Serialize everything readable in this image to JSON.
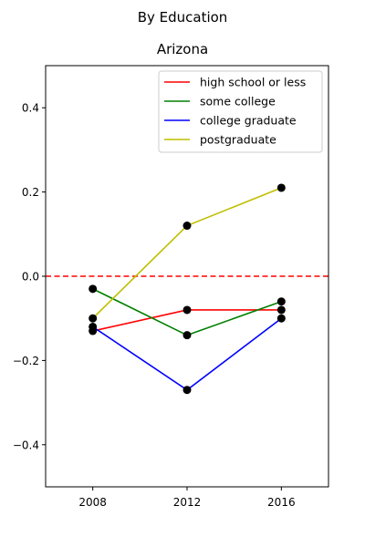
{
  "chart_data": {
    "type": "line",
    "suptitle": "By Education",
    "title": "Arizona",
    "xlabel": "",
    "ylabel": "",
    "x": [
      2008,
      2012,
      2016
    ],
    "xticks": [
      "2008",
      "2012",
      "2016"
    ],
    "xlim": [
      2006,
      2018
    ],
    "ylim": [
      -0.5,
      0.5
    ],
    "yticks": [
      "−0.4",
      "−0.2",
      "0.0",
      "0.2",
      "0.4"
    ],
    "ytick_values": [
      -0.4,
      -0.2,
      0.0,
      0.2,
      0.4
    ],
    "reference_line": {
      "y": 0.0,
      "color": "#ff0000",
      "style": "dashed"
    },
    "marker_color": "#000000",
    "legend_position": "upper-right",
    "grid": false,
    "series": [
      {
        "name": "high school or less",
        "color": "#ff0000",
        "values": [
          -0.13,
          -0.08,
          -0.08
        ]
      },
      {
        "name": "some college",
        "color": "#008000",
        "values": [
          -0.03,
          -0.14,
          -0.06
        ]
      },
      {
        "name": "college graduate",
        "color": "#0000ff",
        "values": [
          -0.12,
          -0.27,
          -0.1
        ]
      },
      {
        "name": "postgraduate",
        "color": "#bfbf00",
        "values": [
          -0.1,
          0.12,
          0.21
        ]
      }
    ]
  }
}
